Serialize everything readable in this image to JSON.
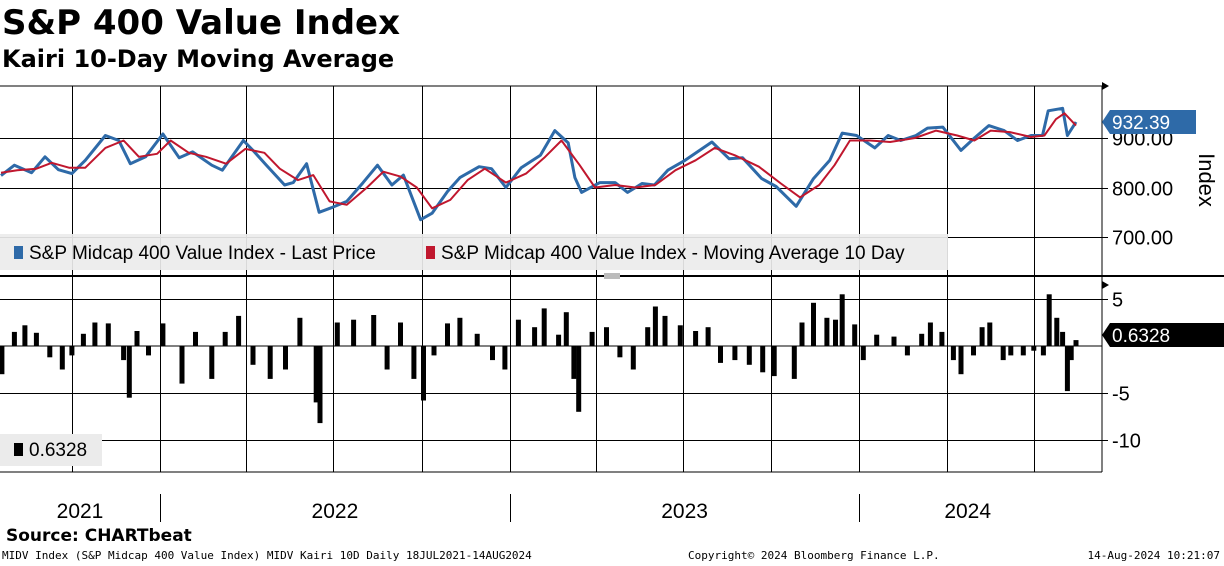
{
  "title": "S&P 400 Value Index",
  "subtitle": "Kairi 10-Day Moving Average",
  "source": "Source: CHARTbeat",
  "footer": {
    "left": "MIDV Index (S&P Midcap 400 Value Index) MIDV Kairi 10D  Daily 18JUL2021-14AUG2024",
    "center": "Copyright© 2024 Bloomberg Finance L.P.",
    "right": "14-Aug-2024 10:21:07"
  },
  "colors": {
    "price": "#2e6aa8",
    "ma": "#c0172e",
    "kairi": "#000000",
    "label_bg": "#2e6aa8"
  },
  "chart_data": [
    {
      "type": "line",
      "panel": "price",
      "ylabel": "Index",
      "yticks": [
        "700.00",
        "800.00",
        "900.00"
      ],
      "ylim": [
        660,
        970
      ],
      "xlim": [
        "2021-07-18",
        "2024-08-14"
      ],
      "x_labels": [
        "2021",
        "2022",
        "2023",
        "2024"
      ],
      "grid": true,
      "legend": "bottom-left",
      "last_value_label": "932.39",
      "series": [
        {
          "name": "S&P Midcap 400 Value Index - Last Price",
          "points": [
            [
              "2021-07-19",
              824
            ],
            [
              "2021-08-02",
              845
            ],
            [
              "2021-08-20",
              830
            ],
            [
              "2021-09-03",
              862
            ],
            [
              "2021-09-17",
              836
            ],
            [
              "2021-10-01",
              828
            ],
            [
              "2021-10-15",
              855
            ],
            [
              "2021-11-05",
              905
            ],
            [
              "2021-11-19",
              895
            ],
            [
              "2021-12-01",
              848
            ],
            [
              "2021-12-17",
              862
            ],
            [
              "2022-01-04",
              908
            ],
            [
              "2022-01-21",
              860
            ],
            [
              "2022-02-04",
              872
            ],
            [
              "2022-02-24",
              845
            ],
            [
              "2022-03-07",
              835
            ],
            [
              "2022-03-29",
              895
            ],
            [
              "2022-04-08",
              875
            ],
            [
              "2022-04-22",
              845
            ],
            [
              "2022-05-11",
              805
            ],
            [
              "2022-05-20",
              810
            ],
            [
              "2022-06-03",
              848
            ],
            [
              "2022-06-16",
              750
            ],
            [
              "2022-06-30",
              760
            ],
            [
              "2022-07-15",
              772
            ],
            [
              "2022-08-01",
              810
            ],
            [
              "2022-08-16",
              845
            ],
            [
              "2022-08-31",
              805
            ],
            [
              "2022-09-12",
              825
            ],
            [
              "2022-09-30",
              735
            ],
            [
              "2022-10-12",
              748
            ],
            [
              "2022-10-28",
              792
            ],
            [
              "2022-11-10",
              820
            ],
            [
              "2022-11-30",
              842
            ],
            [
              "2022-12-13",
              838
            ],
            [
              "2022-12-28",
              800
            ],
            [
              "2023-01-13",
              840
            ],
            [
              "2023-02-02",
              865
            ],
            [
              "2023-02-17",
              915
            ],
            [
              "2023-03-03",
              890
            ],
            [
              "2023-03-10",
              820
            ],
            [
              "2023-03-17",
              790
            ],
            [
              "2023-04-05",
              810
            ],
            [
              "2023-04-21",
              810
            ],
            [
              "2023-05-04",
              790
            ],
            [
              "2023-05-19",
              808
            ],
            [
              "2023-06-01",
              805
            ],
            [
              "2023-06-15",
              835
            ],
            [
              "2023-07-03",
              855
            ],
            [
              "2023-07-31",
              892
            ],
            [
              "2023-08-18",
              858
            ],
            [
              "2023-09-01",
              860
            ],
            [
              "2023-09-21",
              818
            ],
            [
              "2023-10-06",
              802
            ],
            [
              "2023-10-27",
              762
            ],
            [
              "2023-11-14",
              818
            ],
            [
              "2023-12-01",
              855
            ],
            [
              "2023-12-14",
              910
            ],
            [
              "2023-12-29",
              905
            ],
            [
              "2024-01-17",
              880
            ],
            [
              "2024-01-31",
              905
            ],
            [
              "2024-02-13",
              895
            ],
            [
              "2024-02-29",
              905
            ],
            [
              "2024-03-12",
              920
            ],
            [
              "2024-03-28",
              922
            ],
            [
              "2024-04-16",
              875
            ],
            [
              "2024-04-30",
              900
            ],
            [
              "2024-05-15",
              925
            ],
            [
              "2024-05-31",
              915
            ],
            [
              "2024-06-14",
              895
            ],
            [
              "2024-06-28",
              905
            ],
            [
              "2024-07-10",
              905
            ],
            [
              "2024-07-16",
              955
            ],
            [
              "2024-07-31",
              960
            ],
            [
              "2024-08-05",
              905
            ],
            [
              "2024-08-14",
              932.39
            ]
          ]
        },
        {
          "name": "S&P Midcap 400 Value Index - Moving Average 10 Day",
          "points": [
            [
              "2021-07-19",
              830
            ],
            [
              "2021-08-05",
              835
            ],
            [
              "2021-08-25",
              838
            ],
            [
              "2021-09-10",
              850
            ],
            [
              "2021-09-28",
              840
            ],
            [
              "2021-10-15",
              840
            ],
            [
              "2021-11-05",
              880
            ],
            [
              "2021-11-24",
              895
            ],
            [
              "2021-12-10",
              862
            ],
            [
              "2021-12-29",
              868
            ],
            [
              "2022-01-12",
              895
            ],
            [
              "2022-01-31",
              870
            ],
            [
              "2022-02-18",
              862
            ],
            [
              "2022-03-11",
              848
            ],
            [
              "2022-03-31",
              878
            ],
            [
              "2022-04-20",
              870
            ],
            [
              "2022-05-06",
              838
            ],
            [
              "2022-05-25",
              815
            ],
            [
              "2022-06-10",
              825
            ],
            [
              "2022-06-27",
              772
            ],
            [
              "2022-07-15",
              765
            ],
            [
              "2022-08-05",
              800
            ],
            [
              "2022-08-22",
              832
            ],
            [
              "2022-09-09",
              822
            ],
            [
              "2022-09-26",
              800
            ],
            [
              "2022-10-12",
              758
            ],
            [
              "2022-10-31",
              775
            ],
            [
              "2022-11-18",
              815
            ],
            [
              "2022-12-06",
              838
            ],
            [
              "2022-12-28",
              810
            ],
            [
              "2023-01-18",
              828
            ],
            [
              "2023-02-06",
              860
            ],
            [
              "2023-02-24",
              895
            ],
            [
              "2023-03-15",
              845
            ],
            [
              "2023-03-31",
              800
            ],
            [
              "2023-04-21",
              805
            ],
            [
              "2023-05-12",
              800
            ],
            [
              "2023-06-02",
              805
            ],
            [
              "2023-06-23",
              835
            ],
            [
              "2023-07-14",
              855
            ],
            [
              "2023-08-03",
              880
            ],
            [
              "2023-08-24",
              865
            ],
            [
              "2023-09-18",
              842
            ],
            [
              "2023-10-11",
              808
            ],
            [
              "2023-10-31",
              780
            ],
            [
              "2023-11-20",
              805
            ],
            [
              "2023-12-06",
              845
            ],
            [
              "2023-12-22",
              895
            ],
            [
              "2024-01-12",
              895
            ],
            [
              "2024-02-02",
              892
            ],
            [
              "2024-02-28",
              900
            ],
            [
              "2024-03-21",
              915
            ],
            [
              "2024-04-12",
              905
            ],
            [
              "2024-04-30",
              895
            ],
            [
              "2024-05-17",
              915
            ],
            [
              "2024-06-06",
              912
            ],
            [
              "2024-06-28",
              902
            ],
            [
              "2024-07-12",
              905
            ],
            [
              "2024-07-24",
              938
            ],
            [
              "2024-08-02",
              950
            ],
            [
              "2024-08-14",
              925
            ]
          ]
        }
      ]
    },
    {
      "type": "bar",
      "panel": "kairi",
      "yticks": [
        "5",
        "-5",
        "-10"
      ],
      "ylim": [
        -13.5,
        6.5
      ],
      "xlim": [
        "2021-07-18",
        "2024-08-14"
      ],
      "legend": "bottom-left",
      "legend_value": "0.6328",
      "last_value_label": "0.6328",
      "series": [
        {
          "name": "",
          "points": [
            [
              "2021-07-20",
              -3.0
            ],
            [
              "2021-08-02",
              1.5
            ],
            [
              "2021-08-13",
              2.2
            ],
            [
              "2021-08-25",
              1.4
            ],
            [
              "2021-09-08",
              -1.2
            ],
            [
              "2021-09-21",
              -2.5
            ],
            [
              "2021-10-01",
              -1.0
            ],
            [
              "2021-10-13",
              1.3
            ],
            [
              "2021-10-25",
              2.5
            ],
            [
              "2021-11-08",
              2.4
            ],
            [
              "2021-11-24",
              -1.5
            ],
            [
              "2021-11-30",
              -5.5
            ],
            [
              "2021-12-08",
              1.6
            ],
            [
              "2021-12-20",
              -1.0
            ],
            [
              "2022-01-04",
              2.4
            ],
            [
              "2022-01-24",
              -4.0
            ],
            [
              "2022-02-07",
              1.5
            ],
            [
              "2022-02-24",
              -3.5
            ],
            [
              "2022-03-10",
              1.5
            ],
            [
              "2022-03-24",
              3.2
            ],
            [
              "2022-04-08",
              -2.0
            ],
            [
              "2022-04-26",
              -3.5
            ],
            [
              "2022-05-12",
              -2.5
            ],
            [
              "2022-05-27",
              3.0
            ],
            [
              "2022-06-13",
              -6.0
            ],
            [
              "2022-06-17",
              -8.2
            ],
            [
              "2022-07-05",
              2.5
            ],
            [
              "2022-07-22",
              2.8
            ],
            [
              "2022-08-12",
              3.3
            ],
            [
              "2022-08-26",
              -2.5
            ],
            [
              "2022-09-09",
              2.5
            ],
            [
              "2022-09-23",
              -3.5
            ],
            [
              "2022-10-03",
              -5.8
            ],
            [
              "2022-10-14",
              -1.0
            ],
            [
              "2022-10-28",
              2.4
            ],
            [
              "2022-11-10",
              3.0
            ],
            [
              "2022-11-28",
              1.3
            ],
            [
              "2022-12-14",
              -1.5
            ],
            [
              "2022-12-27",
              -2.5
            ],
            [
              "2023-01-10",
              2.8
            ],
            [
              "2023-01-27",
              2.0
            ],
            [
              "2023-02-06",
              4.0
            ],
            [
              "2023-02-21",
              1.2
            ],
            [
              "2023-03-01",
              3.6
            ],
            [
              "2023-03-09",
              -3.5
            ],
            [
              "2023-03-14",
              -7.0
            ],
            [
              "2023-03-28",
              1.5
            ],
            [
              "2023-04-12",
              2.0
            ],
            [
              "2023-04-26",
              -1.2
            ],
            [
              "2023-05-10",
              -2.5
            ],
            [
              "2023-05-25",
              2.0
            ],
            [
              "2023-06-02",
              4.2
            ],
            [
              "2023-06-12",
              3.2
            ],
            [
              "2023-06-28",
              2.2
            ],
            [
              "2023-07-14",
              1.6
            ],
            [
              "2023-07-27",
              2.0
            ],
            [
              "2023-08-09",
              -1.8
            ],
            [
              "2023-08-24",
              -1.5
            ],
            [
              "2023-09-08",
              -2.0
            ],
            [
              "2023-09-22",
              -2.8
            ],
            [
              "2023-10-04",
              -3.2
            ],
            [
              "2023-10-25",
              -3.5
            ],
            [
              "2023-11-02",
              2.5
            ],
            [
              "2023-11-14",
              4.6
            ],
            [
              "2023-11-28",
              3.0
            ],
            [
              "2023-12-07",
              2.8
            ],
            [
              "2023-12-14",
              5.5
            ],
            [
              "2023-12-27",
              2.3
            ],
            [
              "2024-01-05",
              -1.5
            ],
            [
              "2024-01-19",
              1.2
            ],
            [
              "2024-02-06",
              1.0
            ],
            [
              "2024-02-20",
              -1.0
            ],
            [
              "2024-03-06",
              1.3
            ],
            [
              "2024-03-15",
              2.5
            ],
            [
              "2024-03-27",
              1.5
            ],
            [
              "2024-04-08",
              -1.5
            ],
            [
              "2024-04-16",
              -3.0
            ],
            [
              "2024-04-29",
              -1.0
            ],
            [
              "2024-05-08",
              2.0
            ],
            [
              "2024-05-16",
              2.5
            ],
            [
              "2024-05-30",
              -1.5
            ],
            [
              "2024-06-07",
              -1.0
            ],
            [
              "2024-06-20",
              -1.0
            ],
            [
              "2024-07-01",
              -0.5
            ],
            [
              "2024-07-11",
              -1.0
            ],
            [
              "2024-07-17",
              5.5
            ],
            [
              "2024-07-25",
              3.0
            ],
            [
              "2024-07-31",
              1.5
            ],
            [
              "2024-08-05",
              -4.8
            ],
            [
              "2024-08-09",
              -1.5
            ],
            [
              "2024-08-14",
              0.6328
            ]
          ]
        }
      ]
    }
  ]
}
